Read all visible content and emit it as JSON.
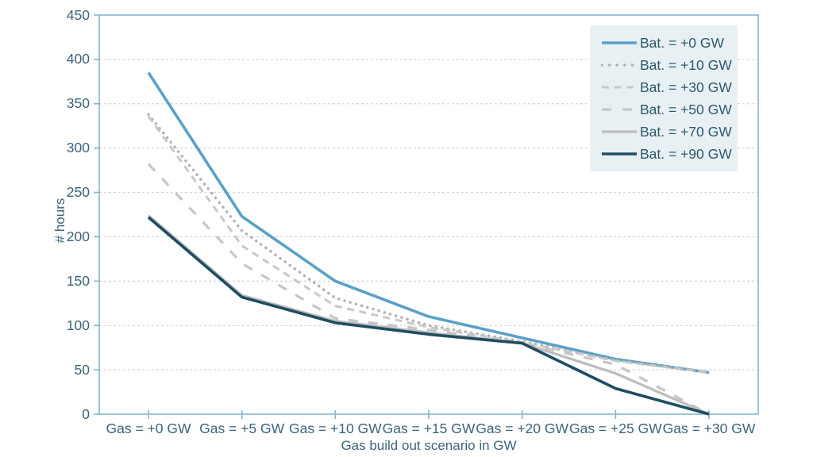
{
  "chart_data": {
    "type": "line",
    "title": "",
    "xlabel": "Gas build out scenario in GW",
    "ylabel": "# hours",
    "ylim": [
      0,
      450
    ],
    "yticks": [
      0,
      50,
      100,
      150,
      200,
      250,
      300,
      350,
      400,
      450
    ],
    "grid": "horizontal-dashed",
    "legend_position": "top-right",
    "categories": [
      "Gas = +0 GW",
      "Gas = +5 GW",
      "Gas = +10 GW",
      "Gas = +15 GW",
      "Gas = +20 GW",
      "Gas = +25 GW",
      "Gas = +30 GW"
    ],
    "series": [
      {
        "name": "Bat. = +0 GW",
        "style": "solid",
        "color": "#59a1c6",
        "width": 3.6,
        "values": [
          385,
          223,
          150,
          110,
          86,
          62,
          47
        ]
      },
      {
        "name": "Bat. = +10 GW",
        "style": "dotted",
        "color": "#b1b1b1",
        "width": 3.5,
        "values": [
          338,
          207,
          131,
          100,
          82,
          61,
          47
        ]
      },
      {
        "name": "Bat. = +30 GW",
        "style": "dashed",
        "color": "#c8c8c8",
        "width": 3.0,
        "values": [
          336,
          190,
          122,
          98,
          81,
          60,
          47
        ]
      },
      {
        "name": "Bat. = +50 GW",
        "style": "dashed-long",
        "color": "#c6c6c6",
        "width": 3.2,
        "values": [
          282,
          170,
          108,
          95,
          80,
          56,
          0
        ]
      },
      {
        "name": "Bat. = +70 GW",
        "style": "solid",
        "color": "#bdbdbd",
        "width": 3.2,
        "values": [
          224,
          134,
          105,
          92,
          80,
          46,
          0
        ]
      },
      {
        "name": "Bat. = +90 GW",
        "style": "solid",
        "color": "#1e4d61",
        "width": 3.6,
        "values": [
          222,
          132,
          103,
          90,
          80,
          29,
          0
        ]
      }
    ]
  },
  "colors": {
    "axis_frame": "#85b5d2",
    "gridline": "#d8d8d8",
    "tick_label": "#3d6376",
    "legend_bg": "#e9f0f4",
    "legend_text": "#2e5a6e",
    "background": "#ffffff"
  }
}
